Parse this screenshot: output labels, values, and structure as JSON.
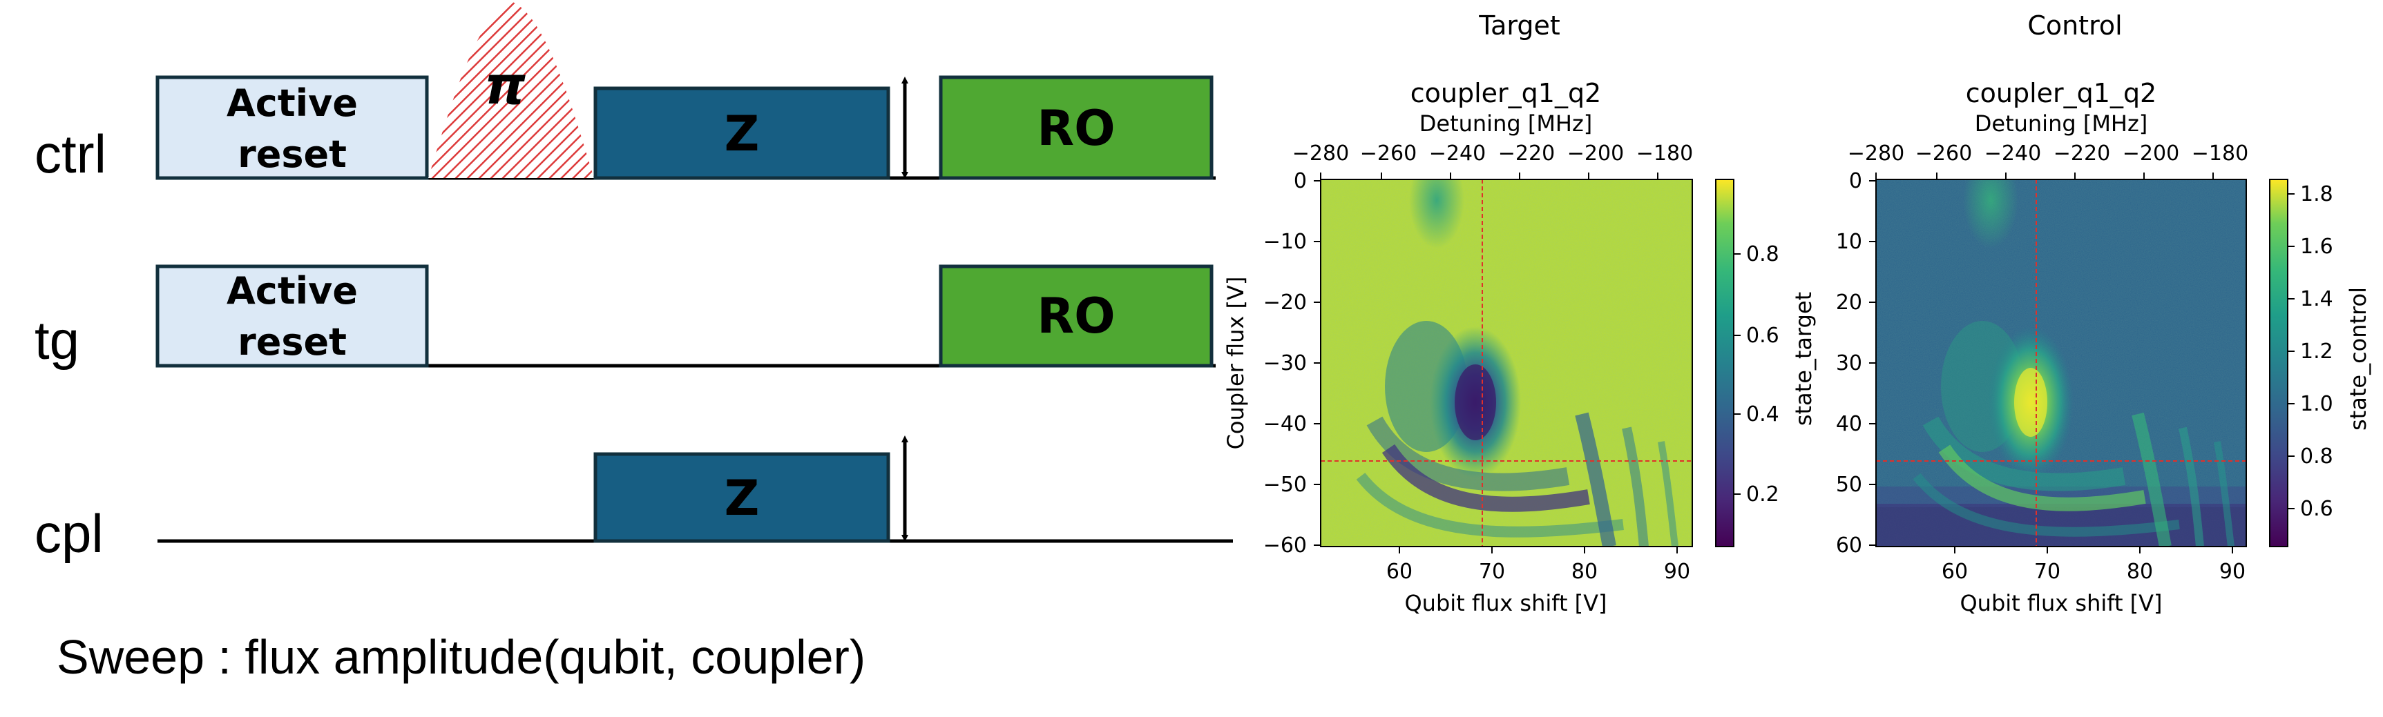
{
  "sequence": {
    "lanes": [
      {
        "label": "ctrl"
      },
      {
        "label": "tg"
      },
      {
        "label": "cpl"
      }
    ],
    "pulses": {
      "active_reset_line1": "Active",
      "active_reset_line2": "reset",
      "pi_symbol": "π",
      "z_label": "Z",
      "ro_label": "RO"
    },
    "colors": {
      "active_reset": "#dce9f6",
      "z": "#175e83",
      "ro": "#4fa832",
      "pi_hatch": "#dd3a3a"
    },
    "sweep_caption": "Sweep : flux amplitude(qubit, coupler)"
  },
  "plots": [
    {
      "id": "target",
      "panel_title": "Target",
      "title": "coupler_q1_q2",
      "top_axis_label": "Detuning [MHz]",
      "top_ticks": [
        "−280",
        "−260",
        "−240",
        "−220",
        "−200",
        "−180"
      ],
      "xlabel": "Qubit flux shift [V]",
      "x_ticks": [
        "60",
        "70",
        "80",
        "90"
      ],
      "ylabel": "Coupler flux [V]",
      "y_ticks": [
        "0",
        "−10",
        "−20",
        "−30",
        "−40",
        "−50",
        "−60"
      ],
      "colorbar_label": "state_target",
      "colorbar_ticks": [
        "0.8",
        "0.6",
        "0.4",
        "0.2"
      ],
      "crosshair": {
        "x": 68,
        "y": -46
      }
    },
    {
      "id": "control",
      "panel_title": "Control",
      "title": "coupler_q1_q2",
      "top_axis_label": "Detuning [MHz]",
      "top_ticks": [
        "−280",
        "−260",
        "−240",
        "−220",
        "−200",
        "−180"
      ],
      "xlabel": "Qubit flux shift [V]",
      "x_ticks": [
        "60",
        "70",
        "80",
        "90"
      ],
      "ylabel": "",
      "y_ticks": [
        "0",
        "10",
        "20",
        "30",
        "40",
        "50",
        "60"
      ],
      "colorbar_label": "state_control",
      "colorbar_ticks": [
        "1.8",
        "1.6",
        "1.4",
        "1.2",
        "1.0",
        "0.8",
        "0.6"
      ],
      "crosshair": {
        "x": 68,
        "y": 46
      }
    }
  ],
  "chart_data": [
    {
      "type": "heatmap",
      "title": "coupler_q1_q2",
      "xlabel": "Qubit flux shift [V]",
      "ylabel": "Coupler flux [V]",
      "secondary_xlabel": "Detuning [MHz]",
      "xlim": [
        51,
        91
      ],
      "ylim": [
        -60,
        0
      ],
      "secondary_xlim": [
        -285,
        -177
      ],
      "colorbar": {
        "label": "state_target",
        "range": [
          0.05,
          0.97
        ],
        "colormap": "viridis"
      },
      "crosshair": {
        "x": 68,
        "y": -46
      },
      "features": "uniform high background (~0.9); dark resonance blob centered near x=68, y=-37 (~0.1); fringes curving toward lower right below y=-40"
    },
    {
      "type": "heatmap",
      "title": "coupler_q1_q2",
      "xlabel": "Qubit flux shift [V]",
      "ylabel": "",
      "secondary_xlabel": "Detuning [MHz]",
      "xlim": [
        51,
        91
      ],
      "ylim": [
        60,
        0
      ],
      "secondary_xlim": [
        -285,
        -177
      ],
      "colorbar": {
        "label": "state_control",
        "range": [
          0.45,
          1.85
        ],
        "colormap": "viridis"
      },
      "crosshair": {
        "x": 68,
        "y": 46
      },
      "features": "low background (~0.9); bright blob near x=68, y=37 (~1.7); fringes curving toward lower right"
    }
  ]
}
